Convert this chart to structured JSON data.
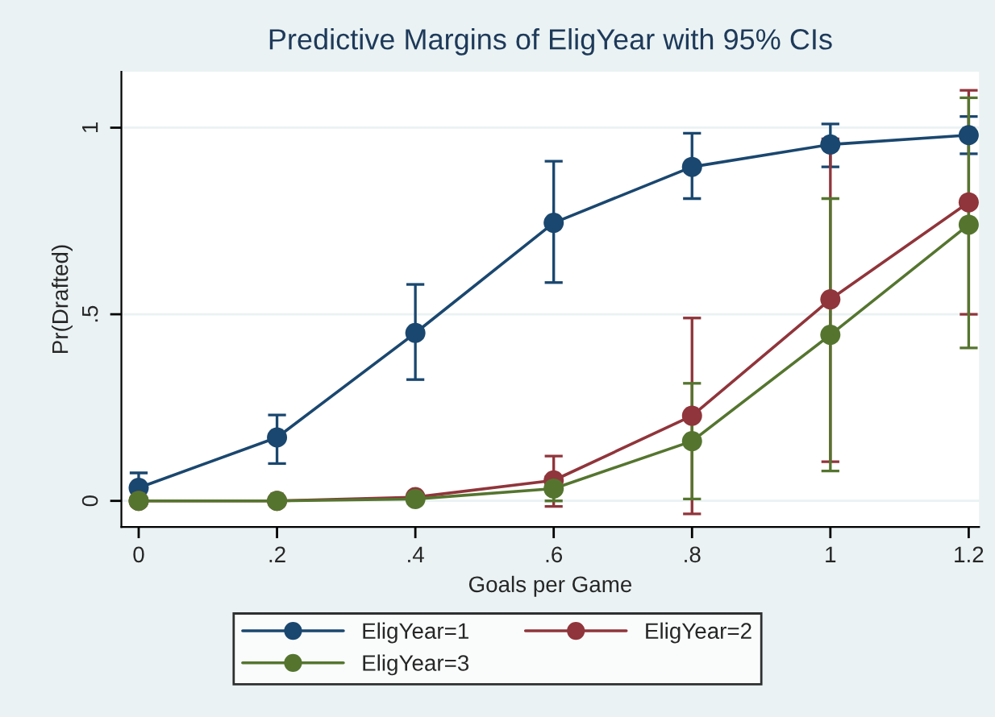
{
  "chart_data": {
    "type": "line",
    "title": "Predictive Margins of EligYear with 95% CIs",
    "xlabel": "Goals per Game",
    "ylabel": "Pr(Drafted)",
    "x": [
      0,
      0.2,
      0.4,
      0.6,
      0.8,
      1,
      1.2
    ],
    "series": [
      {
        "name": "EligYear=1",
        "color": "#1a476f",
        "values": [
          0.035,
          0.17,
          0.45,
          0.745,
          0.895,
          0.955,
          0.98
        ],
        "errors": [
          [
            0.035,
            0.075
          ],
          [
            0.1,
            0.23
          ],
          [
            0.325,
            0.58
          ],
          [
            0.585,
            0.91
          ],
          [
            0.81,
            0.985
          ],
          [
            0.895,
            1.01
          ],
          [
            0.93,
            1.03
          ]
        ]
      },
      {
        "name": "EligYear=2",
        "color": "#90353b",
        "values": [
          0,
          0,
          0.01,
          0.055,
          0.228,
          0.54,
          0.8
        ],
        "errors": [
          null,
          null,
          null,
          [
            -0.015,
            0.12
          ],
          [
            -0.035,
            0.49
          ],
          [
            0.105,
            0.97
          ],
          [
            0.5,
            1.1
          ]
        ]
      },
      {
        "name": "EligYear=3",
        "color": "#55752f",
        "values": [
          0,
          0,
          0.005,
          0.033,
          0.16,
          0.445,
          0.74
        ],
        "errors": [
          null,
          null,
          null,
          [
            0.0,
            0.065
          ],
          [
            0.005,
            0.315
          ],
          [
            0.08,
            0.81
          ],
          [
            0.41,
            1.08
          ]
        ]
      }
    ],
    "xlim": [
      -0.025,
      1.215
    ],
    "ylim": [
      -0.07,
      1.15
    ],
    "xticks": [
      {
        "value": 0,
        "label": "0"
      },
      {
        "value": 0.2,
        "label": ".2"
      },
      {
        "value": 0.4,
        "label": ".4"
      },
      {
        "value": 0.6,
        "label": ".6"
      },
      {
        "value": 0.8,
        "label": ".8"
      },
      {
        "value": 1,
        "label": "1"
      },
      {
        "value": 1.2,
        "label": "1.2"
      }
    ],
    "yticks": [
      {
        "value": 0,
        "label": "0"
      },
      {
        "value": 0.5,
        "label": ".5"
      },
      {
        "value": 1,
        "label": "1"
      }
    ],
    "grid": "y",
    "legend": "bottom",
    "marker": "circle",
    "line_style": "solid"
  }
}
